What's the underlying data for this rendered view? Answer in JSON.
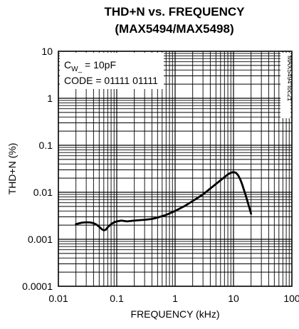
{
  "chart_data": {
    "type": "line",
    "title_line1": "THD+N vs. FREQUENCY",
    "title_line2": "(MAX5494/MAX5498)",
    "xlabel": "FREQUENCY (kHz)",
    "ylabel": "THD+N (%)",
    "x_scale": "log",
    "y_scale": "log",
    "xlim": [
      0.01,
      100
    ],
    "ylim": [
      0.0001,
      10
    ],
    "x_tick_labels": [
      "0.01",
      "0.1",
      "1",
      "10",
      "100"
    ],
    "y_tick_labels": [
      "10",
      "1",
      "0.1",
      "0.01",
      "0.001",
      "0.0001"
    ],
    "x_ticks": [
      0.01,
      0.1,
      1,
      10,
      100
    ],
    "y_ticks": [
      10,
      1,
      0.1,
      0.01,
      0.001,
      0.0001
    ],
    "grid": true,
    "annotation": {
      "line1_prefix": "C",
      "line1_sub": "W_",
      "line1_suffix": " = 10pF",
      "line2": "CODE = 01111 01111"
    },
    "side_label": "MAX5494 toc21",
    "series": [
      {
        "x": [
          0.02,
          0.025,
          0.03,
          0.035,
          0.04,
          0.045,
          0.05,
          0.055,
          0.06,
          0.065,
          0.07,
          0.08,
          0.09,
          0.1,
          0.12,
          0.15,
          0.2,
          0.3,
          0.4,
          0.5,
          0.7,
          1,
          1.5,
          2,
          3,
          4,
          5,
          6,
          7,
          8,
          9,
          10,
          11,
          12,
          13,
          14,
          16,
          18,
          20
        ],
        "y": [
          0.0021,
          0.00225,
          0.0023,
          0.00228,
          0.0022,
          0.00205,
          0.00185,
          0.00165,
          0.00155,
          0.0016,
          0.0018,
          0.0021,
          0.0023,
          0.0024,
          0.0025,
          0.0024,
          0.0025,
          0.0026,
          0.0027,
          0.0029,
          0.0033,
          0.004,
          0.0052,
          0.0065,
          0.009,
          0.012,
          0.015,
          0.018,
          0.021,
          0.024,
          0.026,
          0.027,
          0.026,
          0.023,
          0.019,
          0.015,
          0.009,
          0.0055,
          0.0035
        ]
      }
    ],
    "colors": {
      "grid": "#000000",
      "line": "#000000",
      "background": "#ffffff"
    }
  }
}
